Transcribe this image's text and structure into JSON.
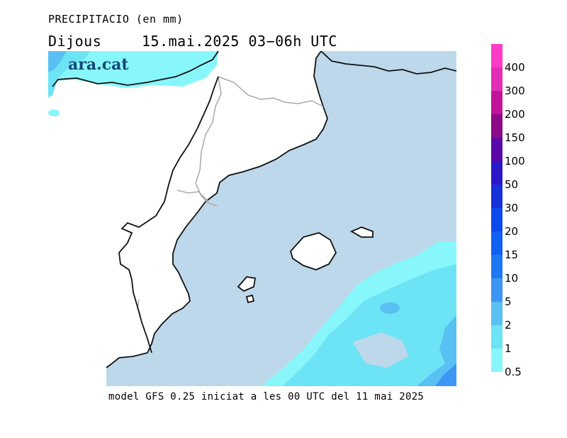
{
  "header": {
    "title": "PRECIPITACIO (en mm)",
    "day": "Dijous",
    "period": "15.mai.2025 03−06h UTC"
  },
  "brand": {
    "text": "ara.cat"
  },
  "footer": {
    "model_note": "model GFS 0.25 iniciat a les 00 UTC del 11 mai 2025"
  },
  "legend": {
    "levels": [
      {
        "label": "400",
        "color": "#ff3bc8"
      },
      {
        "label": "300",
        "color": "#e22db6"
      },
      {
        "label": "200",
        "color": "#c0149a"
      },
      {
        "label": "150",
        "color": "#8c0a86"
      },
      {
        "label": "100",
        "color": "#5a09a8"
      },
      {
        "label": "50",
        "color": "#2a17c8"
      },
      {
        "label": "30",
        "color": "#1630da"
      },
      {
        "label": "20",
        "color": "#0c49ec"
      },
      {
        "label": "15",
        "color": "#0f60f4"
      },
      {
        "label": "10",
        "color": "#1d78f4"
      },
      {
        "label": "5",
        "color": "#3d96f3"
      },
      {
        "label": "2",
        "color": "#58c0f3"
      },
      {
        "label": "1",
        "color": "#6de3f6"
      },
      {
        "label": "0.5",
        "color": "#88f7fb"
      }
    ]
  },
  "map_colors": {
    "sea": "#bdd8ea",
    "land": "#ffffff",
    "precip_0_5": "#88f7fb",
    "precip_1": "#6de3f6",
    "precip_2": "#58c0f3",
    "precip_5": "#3d96f3",
    "coast": "#111111",
    "border": "#a8a8a8"
  }
}
